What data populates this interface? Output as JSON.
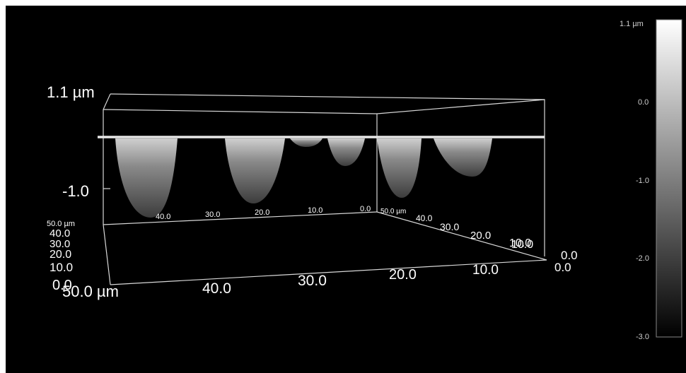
{
  "z_axis": {
    "top_label": "1.1 µm",
    "mid_label": "-1.0"
  },
  "front_axis": {
    "origin_label": "50.0 µm",
    "origin_overlap": "0.0",
    "ticks": [
      "40.0",
      "30.0",
      "20.0",
      "10.0"
    ]
  },
  "right_axis": {
    "ticks": [
      "10.0",
      "0.0"
    ]
  },
  "left_axis": {
    "ticks": [
      "50.0 µm",
      "40.0",
      "30.0",
      "20.0",
      "10.0"
    ]
  },
  "back_axis_x": {
    "ticks": [
      "40.0",
      "30.0",
      "20.0",
      "10.0",
      "0.0"
    ]
  },
  "back_axis_y": {
    "ticks": [
      "50.0 µm",
      "40.0",
      "30.0",
      "20.0",
      "10.0",
      "0.0"
    ]
  },
  "colorbar": {
    "max_label": "1.1 µm",
    "ticks": [
      "0.0",
      "-1.0",
      "-2.0",
      "-3.0"
    ]
  }
}
